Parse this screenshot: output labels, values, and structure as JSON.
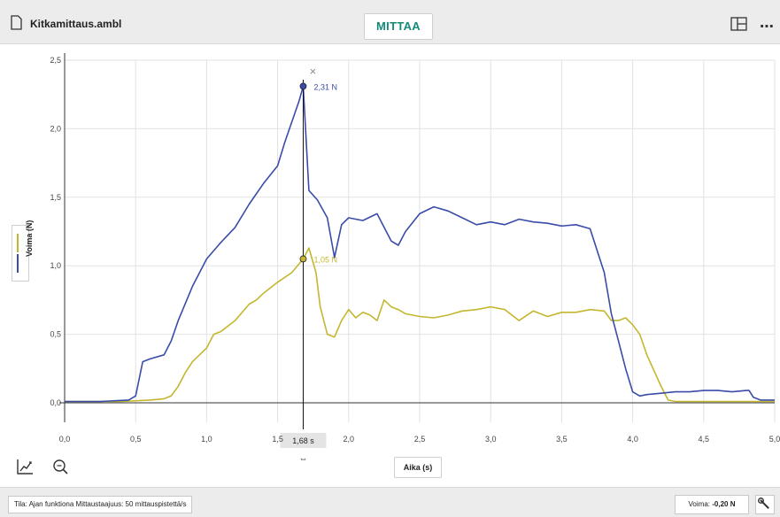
{
  "header": {
    "file_name": "Kitkamittaus.ambl",
    "measure_label": "MITTAA",
    "icons": [
      "file-icon",
      "layout-icon",
      "more-icon"
    ]
  },
  "chart_data": {
    "type": "line",
    "xlabel": "Aika (s)",
    "ylabel": "Voima (N)",
    "xlim": [
      0,
      5.0
    ],
    "ylim": [
      0,
      2.5
    ],
    "x_ticks": [
      "0,0",
      "0,5",
      "1,0",
      "1,5",
      "2,0",
      "2,5",
      "3,0",
      "3,5",
      "4,0",
      "4,5",
      "5,0"
    ],
    "y_ticks": [
      "0,0",
      "0,5",
      "1,0",
      "1,5",
      "2,0",
      "2,5"
    ],
    "grid": true,
    "cursor": {
      "x": 1.68,
      "label": "1,68 s"
    },
    "annotations": [
      {
        "text": "2,31 N",
        "x": 1.68,
        "y": 2.31,
        "color": "#3a4ca8"
      },
      {
        "text": "1,05 N",
        "x": 1.68,
        "y": 1.05,
        "color": "#c4b62e"
      }
    ],
    "series": [
      {
        "color": "#3a4ca8",
        "x": [
          0,
          0.25,
          0.45,
          0.5,
          0.55,
          0.6,
          0.7,
          0.75,
          0.8,
          0.9,
          1.0,
          1.1,
          1.2,
          1.3,
          1.4,
          1.5,
          1.55,
          1.6,
          1.65,
          1.68,
          1.72,
          1.78,
          1.85,
          1.9,
          1.95,
          2.0,
          2.1,
          2.2,
          2.3,
          2.35,
          2.4,
          2.5,
          2.6,
          2.7,
          2.8,
          2.9,
          3.0,
          3.1,
          3.2,
          3.3,
          3.4,
          3.5,
          3.6,
          3.7,
          3.8,
          3.85,
          3.9,
          3.95,
          4.0,
          4.05,
          4.1,
          4.2,
          4.3,
          4.4,
          4.5,
          4.6,
          4.7,
          4.8,
          4.82,
          4.85,
          4.9,
          5.0
        ],
        "y": [
          0.01,
          0.01,
          0.02,
          0.05,
          0.3,
          0.32,
          0.35,
          0.45,
          0.6,
          0.85,
          1.05,
          1.17,
          1.28,
          1.45,
          1.6,
          1.73,
          1.9,
          2.05,
          2.2,
          2.31,
          1.55,
          1.48,
          1.35,
          1.06,
          1.3,
          1.35,
          1.33,
          1.38,
          1.18,
          1.15,
          1.25,
          1.38,
          1.43,
          1.4,
          1.35,
          1.3,
          1.32,
          1.3,
          1.34,
          1.32,
          1.31,
          1.29,
          1.3,
          1.27,
          0.95,
          0.65,
          0.45,
          0.25,
          0.08,
          0.05,
          0.06,
          0.07,
          0.08,
          0.08,
          0.09,
          0.09,
          0.08,
          0.09,
          0.09,
          0.04,
          0.02,
          0.02
        ]
      },
      {
        "color": "#c4b62e",
        "x": [
          0,
          0.4,
          0.6,
          0.7,
          0.75,
          0.8,
          0.85,
          0.9,
          1.0,
          1.05,
          1.1,
          1.2,
          1.3,
          1.35,
          1.4,
          1.5,
          1.6,
          1.68,
          1.72,
          1.77,
          1.8,
          1.85,
          1.9,
          1.95,
          2.0,
          2.05,
          2.1,
          2.15,
          2.2,
          2.25,
          2.3,
          2.35,
          2.4,
          2.5,
          2.6,
          2.7,
          2.8,
          2.9,
          3.0,
          3.1,
          3.2,
          3.3,
          3.4,
          3.5,
          3.6,
          3.7,
          3.8,
          3.85,
          3.9,
          3.95,
          4.0,
          4.05,
          4.1,
          4.2,
          4.25,
          4.3,
          4.5,
          5.0
        ],
        "y": [
          0.01,
          0.01,
          0.02,
          0.03,
          0.05,
          0.12,
          0.22,
          0.3,
          0.4,
          0.5,
          0.52,
          0.6,
          0.72,
          0.75,
          0.8,
          0.88,
          0.95,
          1.05,
          1.13,
          0.95,
          0.7,
          0.5,
          0.48,
          0.6,
          0.68,
          0.62,
          0.66,
          0.64,
          0.6,
          0.75,
          0.7,
          0.68,
          0.65,
          0.63,
          0.62,
          0.64,
          0.67,
          0.68,
          0.7,
          0.68,
          0.6,
          0.67,
          0.63,
          0.66,
          0.66,
          0.68,
          0.67,
          0.6,
          0.6,
          0.62,
          0.57,
          0.5,
          0.35,
          0.12,
          0.02,
          0.01,
          0.01,
          0.01
        ]
      }
    ]
  },
  "toolbar": {
    "icons": [
      "graph-tool-icon",
      "zoom-icon"
    ]
  },
  "status": {
    "text": "Tila: Ajan funktiona   Mittaustaajuus: 50 mittauspistettä/s",
    "voima_label": "Voima:",
    "voima_value": "-0,20 N",
    "wrench_icon": "wrench-icon"
  }
}
